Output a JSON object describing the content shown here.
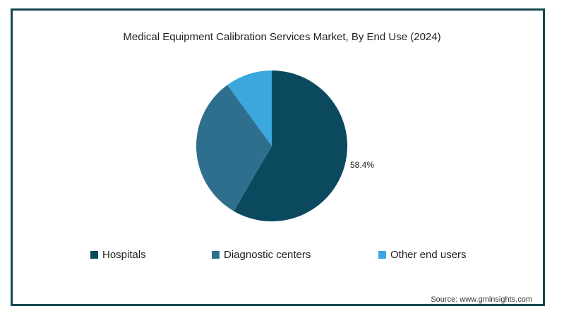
{
  "chart_data": {
    "type": "pie",
    "title": "Medical Equipment Calibration Services Market, By End Use (2024)",
    "slices": [
      {
        "name": "Hospitals",
        "value": 58.4,
        "label": "58.4%",
        "color": "#0b4a5e"
      },
      {
        "name": "Diagnostic centers",
        "value": 31.6,
        "label": "",
        "color": "#2f6f8e"
      },
      {
        "name": "Other end users",
        "value": 10.0,
        "label": "",
        "color": "#3aa7dd"
      }
    ],
    "legend_position": "bottom"
  },
  "source": "Source: www.gminsights.com"
}
